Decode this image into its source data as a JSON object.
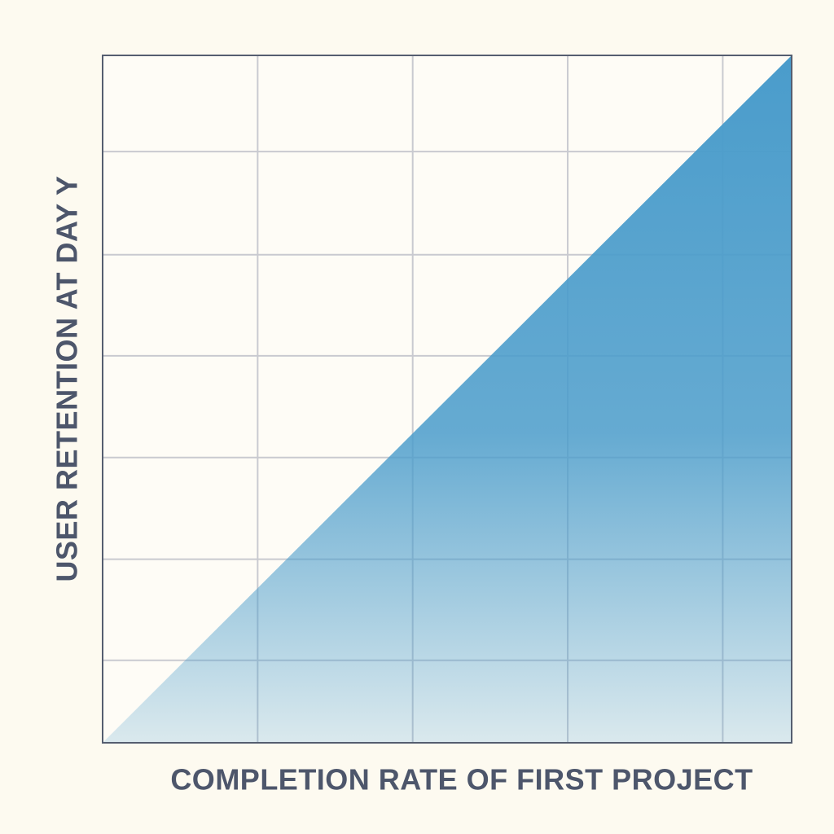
{
  "chart_data": {
    "type": "area",
    "x_label": "COMPLETION RATE OF FIRST PROJECT",
    "y_label": "USER RETENTION AT DAY Y",
    "x": [
      0,
      1
    ],
    "values": [
      0,
      1
    ],
    "xlim": [
      0,
      1
    ],
    "ylim": [
      0,
      1
    ],
    "xticks": [
      0.225,
      0.45,
      0.675,
      0.9
    ],
    "yticks": [
      0.12,
      0.267,
      0.415,
      0.563,
      0.71,
      0.86
    ],
    "grid": true,
    "color": "#4a9ccb"
  }
}
